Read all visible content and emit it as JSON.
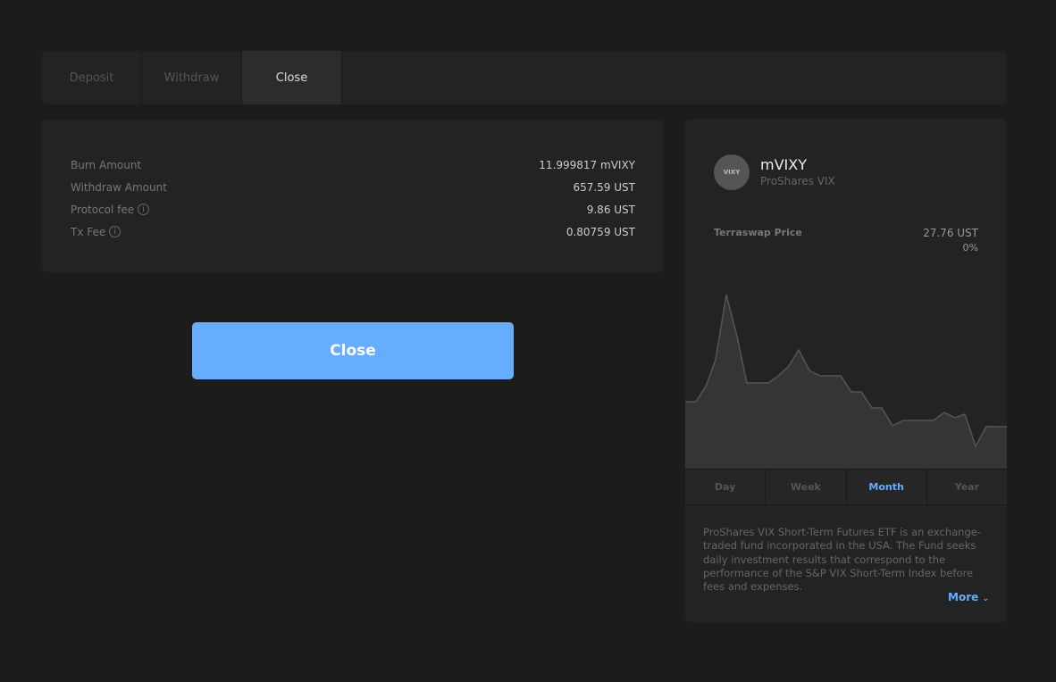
{
  "tabs": [
    {
      "label": "Deposit"
    },
    {
      "label": "Withdraw"
    },
    {
      "label": "Close",
      "active": true
    }
  ],
  "summary": {
    "rows": [
      {
        "label": "Burn Amount",
        "value": "11.999817 mVIXY"
      },
      {
        "label": "Withdraw Amount",
        "value": "657.59 UST"
      },
      {
        "label": "Protocol fee",
        "value": "9.86 UST",
        "info": true
      },
      {
        "label": "Tx Fee",
        "value": "0.80759 UST",
        "info": true
      }
    ]
  },
  "close_button": "Close",
  "asset": {
    "logo_text": "VIXY",
    "symbol": "mVIXY",
    "name": "ProShares VIX",
    "price_label": "Terraswap Price",
    "price": "27.76 UST",
    "change": "0%",
    "ranges": [
      "Day",
      "Week",
      "Month",
      "Year"
    ],
    "active_range": "Month",
    "description": "ProShares VIX Short-Term Futures ETF is an exchange-traded fund incorporated in the USA. The Fund seeks daily investment results that correspond to the performance of the S&P VIX Short-Term Index before fees and expenses.",
    "more_label": "More",
    "accent": "#66adff"
  }
}
